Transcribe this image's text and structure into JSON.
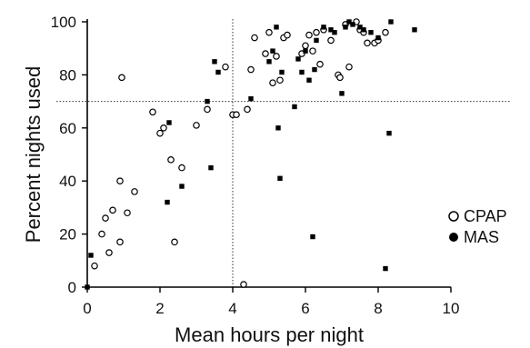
{
  "chart_data": {
    "type": "scatter",
    "title": "",
    "xlabel": "Mean hours per night",
    "ylabel": "Percent nights used",
    "xlim": [
      0,
      10
    ],
    "ylim": [
      0,
      100
    ],
    "xticks": [
      "0",
      "2",
      "4",
      "6",
      "8",
      "10"
    ],
    "yticks": [
      "0",
      "20",
      "40",
      "60",
      "80",
      "100"
    ],
    "grid": false,
    "reference_lines": {
      "x": 4,
      "y": 70,
      "style": "dotted"
    },
    "legend": {
      "position": "right"
    },
    "series": [
      {
        "name": "CPAP",
        "marker": "open-circle",
        "points": [
          [
            0.2,
            8
          ],
          [
            0.4,
            20
          ],
          [
            0.5,
            26
          ],
          [
            0.6,
            13
          ],
          [
            0.7,
            29
          ],
          [
            0.9,
            17
          ],
          [
            0.9,
            40
          ],
          [
            0.95,
            79
          ],
          [
            1.1,
            28
          ],
          [
            1.3,
            36
          ],
          [
            1.8,
            66
          ],
          [
            2.0,
            58
          ],
          [
            2.1,
            60
          ],
          [
            2.3,
            48
          ],
          [
            2.4,
            17
          ],
          [
            2.6,
            45
          ],
          [
            3.0,
            61
          ],
          [
            3.3,
            67
          ],
          [
            3.8,
            83
          ],
          [
            4.0,
            65
          ],
          [
            4.1,
            65
          ],
          [
            4.3,
            1
          ],
          [
            4.4,
            67
          ],
          [
            4.5,
            82
          ],
          [
            4.6,
            94
          ],
          [
            4.9,
            88
          ],
          [
            5.0,
            96
          ],
          [
            5.1,
            77
          ],
          [
            5.2,
            87
          ],
          [
            5.3,
            78
          ],
          [
            5.4,
            94
          ],
          [
            5.5,
            95
          ],
          [
            5.9,
            88
          ],
          [
            6.0,
            91
          ],
          [
            6.1,
            95
          ],
          [
            6.2,
            89
          ],
          [
            6.3,
            96
          ],
          [
            6.4,
            84
          ],
          [
            6.5,
            97
          ],
          [
            6.7,
            93
          ],
          [
            6.9,
            80
          ],
          [
            6.95,
            79
          ],
          [
            7.1,
            99
          ],
          [
            7.2,
            83
          ],
          [
            7.4,
            100
          ],
          [
            7.5,
            97
          ],
          [
            7.6,
            96
          ],
          [
            7.7,
            92
          ],
          [
            7.9,
            92
          ],
          [
            8.0,
            93
          ],
          [
            8.2,
            96
          ]
        ]
      },
      {
        "name": "MAS",
        "marker": "filled-circle",
        "points": [
          [
            0.0,
            0
          ],
          [
            0.1,
            12
          ],
          [
            2.2,
            32
          ],
          [
            2.25,
            62
          ],
          [
            2.6,
            38
          ],
          [
            3.3,
            70
          ],
          [
            3.4,
            45
          ],
          [
            3.5,
            85
          ],
          [
            3.6,
            81
          ],
          [
            4.5,
            71
          ],
          [
            5.0,
            85
          ],
          [
            5.1,
            89
          ],
          [
            5.2,
            98
          ],
          [
            5.25,
            60
          ],
          [
            5.3,
            41
          ],
          [
            5.35,
            81
          ],
          [
            5.7,
            68
          ],
          [
            5.8,
            86
          ],
          [
            5.9,
            81
          ],
          [
            6.0,
            89
          ],
          [
            6.1,
            78
          ],
          [
            6.2,
            19
          ],
          [
            6.25,
            82
          ],
          [
            6.3,
            93
          ],
          [
            6.5,
            98
          ],
          [
            6.7,
            97
          ],
          [
            6.8,
            96
          ],
          [
            7.0,
            73
          ],
          [
            7.1,
            98
          ],
          [
            7.2,
            100
          ],
          [
            7.3,
            99
          ],
          [
            7.5,
            98
          ],
          [
            7.6,
            97
          ],
          [
            7.8,
            96
          ],
          [
            8.0,
            94
          ],
          [
            8.2,
            7
          ],
          [
            8.3,
            58
          ],
          [
            8.35,
            100
          ],
          [
            9.0,
            97
          ]
        ]
      }
    ]
  }
}
